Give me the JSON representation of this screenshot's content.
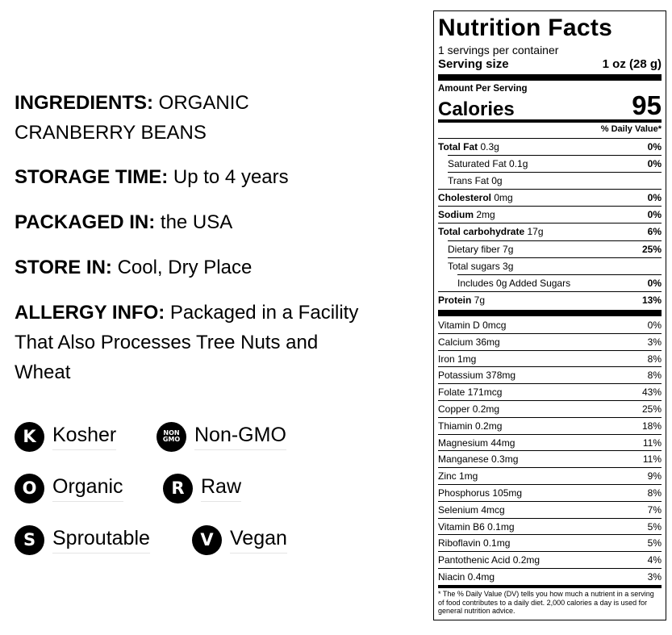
{
  "info": {
    "ingredients": {
      "label": "INGREDIENTS:",
      "value": " ORGANIC",
      "value2": "CRANBERRY BEANS"
    },
    "storage_time": {
      "label": "STORAGE TIME:",
      "value": " Up to 4 years"
    },
    "packaged_in": {
      "label": "PACKAGED IN:",
      "value": " the USA"
    },
    "store_in": {
      "label": "STORE IN:",
      "value": " Cool, Dry Place"
    },
    "allergy": {
      "label": "ALLERGY INFO:",
      "value": " Packaged in a Facility",
      "value2": "That Also Processes Tree Nuts and",
      "value3": "Wheat"
    }
  },
  "badges": {
    "kosher": {
      "glyph": "K",
      "label": "Kosher"
    },
    "non_gmo": {
      "glyph1": "NON",
      "glyph2": "GMO",
      "label": "Non-GMO"
    },
    "organic": {
      "glyph": "O",
      "label": "Organic"
    },
    "raw": {
      "glyph": "R",
      "label": "Raw"
    },
    "sproutable": {
      "glyph": "S",
      "label": "Sproutable"
    },
    "vegan": {
      "glyph": "V",
      "label": "Vegan"
    }
  },
  "nutrition": {
    "title": "Nutrition Facts",
    "servings": "1 servings per container",
    "serving_size_label": "Serving size",
    "serving_size_value": "1 oz (28 g)",
    "amount_per_serving": "Amount Per Serving",
    "calories_label": "Calories",
    "calories_value": "95",
    "dv_header": "% Daily Value*",
    "macros": [
      {
        "name": "Total Fat",
        "amount": " 0.3g",
        "pct": "0%"
      },
      {
        "name": "Saturated Fat",
        "amount": " 0.1g",
        "pct": "0%"
      },
      {
        "name": "Trans Fat",
        "amount": " 0g",
        "pct": ""
      },
      {
        "name": "Cholesterol",
        "amount": " 0mg",
        "pct": "0%"
      },
      {
        "name": "Sodium",
        "amount": " 2mg",
        "pct": "0%"
      },
      {
        "name": "Total carbohydrate",
        "amount": " 17g",
        "pct": "6%"
      },
      {
        "name": "Dietary fiber",
        "amount": " 7g",
        "pct": "25%"
      },
      {
        "name": "Total sugars",
        "amount": " 3g",
        "pct": ""
      },
      {
        "name": "Includes 0g Added Sugars",
        "amount": "",
        "pct": "0%"
      },
      {
        "name": "Protein",
        "amount": " 7g",
        "pct": "13%"
      }
    ],
    "vitamins": [
      {
        "name": "Vitamin D 0mcg",
        "pct": "0%"
      },
      {
        "name": "Calcium 36mg",
        "pct": "3%"
      },
      {
        "name": "Iron 1mg",
        "pct": "8%"
      },
      {
        "name": "Potassium 378mg",
        "pct": "8%"
      },
      {
        "name": "Folate 171mcg",
        "pct": "43%"
      },
      {
        "name": "Copper 0.2mg",
        "pct": "25%"
      },
      {
        "name": "Thiamin 0.2mg",
        "pct": "18%"
      },
      {
        "name": "Magnesium 44mg",
        "pct": "11%"
      },
      {
        "name": "Manganese 0.3mg",
        "pct": "11%"
      },
      {
        "name": "Zinc 1mg",
        "pct": "9%"
      },
      {
        "name": "Phosphorus 105mg",
        "pct": "8%"
      },
      {
        "name": "Selenium 4mcg",
        "pct": "7%"
      },
      {
        "name": "Vitamin B6 0.1mg",
        "pct": "5%"
      },
      {
        "name": "Riboflavin 0.1mg",
        "pct": "5%"
      },
      {
        "name": "Pantothenic Acid 0.2mg",
        "pct": "4%"
      },
      {
        "name": "Niacin 0.4mg",
        "pct": "3%"
      }
    ],
    "footnote": "* The % Daily Value (DV) tells you how much a nutrient in a serving of food contributes to a daily diet. 2,000 calories a day is used for general nutrition advice."
  }
}
